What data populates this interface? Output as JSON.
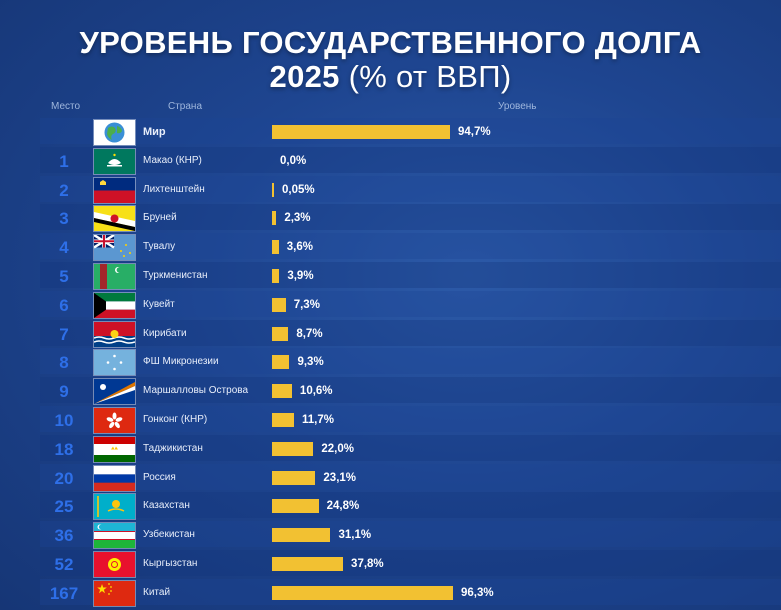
{
  "title": {
    "line1": "УРОВЕНЬ ГОСУДАРСТВЕННОГО ДОЛГА",
    "year": "2025",
    "unit": "(% от ВВП)"
  },
  "columns": {
    "rank": "Место",
    "country": "Страна",
    "level": "Уровень"
  },
  "colors": {
    "bar": "#f2c132",
    "rank": "#2e6fe8",
    "background": "#1e4590"
  },
  "chart_data": {
    "type": "bar",
    "orientation": "horizontal",
    "title": "УРОВЕНЬ ГОСУДАРСТВЕННОГО ДОЛГА 2025 (% от ВВП)",
    "categories": [
      "Мир",
      "Макао (КНР)",
      "Лихтенштейн",
      "Бруней",
      "Тувалу",
      "Туркменистан",
      "Кувейт",
      "Кирибати",
      "ФШ Микронезии",
      "Маршалловы Острова",
      "Гонконг (КНР)",
      "Таджикистан",
      "Россия",
      "Казахстан",
      "Узбекистан",
      "Кыргызстан",
      "Китай"
    ],
    "ranks": [
      "",
      "1",
      "2",
      "3",
      "4",
      "5",
      "6",
      "7",
      "8",
      "9",
      "10",
      "18",
      "20",
      "25",
      "36",
      "52",
      "167"
    ],
    "values": [
      94.7,
      0.0,
      0.05,
      2.3,
      3.6,
      3.9,
      7.3,
      8.7,
      9.3,
      10.6,
      11.7,
      22.0,
      23.1,
      24.8,
      31.1,
      37.8,
      96.3
    ],
    "labels": [
      "94,7%",
      "0,0%",
      "0,05%",
      "2,3%",
      "3,6%",
      "3,9%",
      "7,3%",
      "8,7%",
      "9,3%",
      "10,6%",
      "11,7%",
      "22,0%",
      "23,1%",
      "24,8%",
      "31,1%",
      "37,8%",
      "96,3%"
    ],
    "flags": [
      "globe-icon",
      "macau-flag",
      "liechtenstein-flag",
      "brunei-flag",
      "tuvalu-flag",
      "turkmenistan-flag",
      "kuwait-flag",
      "kiribati-flag",
      "micronesia-flag",
      "marshall-islands-flag",
      "hong-kong-flag",
      "tajikistan-flag",
      "russia-flag",
      "kazakhstan-flag",
      "uzbekistan-flag",
      "kyrgyzstan-flag",
      "china-flag"
    ]
  }
}
